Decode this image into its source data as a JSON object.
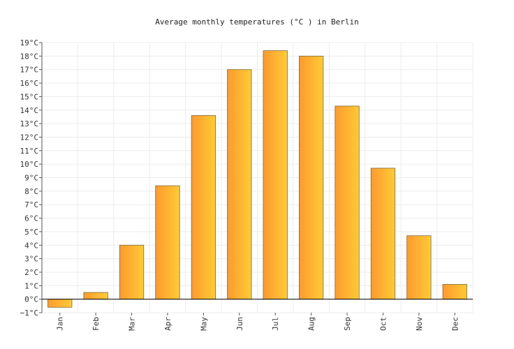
{
  "chart_data": {
    "type": "bar",
    "title": "Average monthly temperatures (°C ) in Berlin",
    "xlabel": "",
    "ylabel": "",
    "categories": [
      "Jan",
      "Feb",
      "Mar",
      "Apr",
      "May",
      "Jun",
      "Jul",
      "Aug",
      "Sep",
      "Oct",
      "Nov",
      "Dec"
    ],
    "values": [
      -0.6,
      0.5,
      4.0,
      8.4,
      13.6,
      17.0,
      18.4,
      18.0,
      14.3,
      9.7,
      4.7,
      1.1
    ],
    "ylim": [
      -1,
      19
    ],
    "y_ticks": [
      "−1°C",
      "0°C",
      "1°C",
      "2°C",
      "3°C",
      "4°C",
      "5°C",
      "6°C",
      "7°C",
      "8°C",
      "9°C",
      "10°C",
      "11°C",
      "12°C",
      "13°C",
      "14°C",
      "15°C",
      "16°C",
      "17°C",
      "18°C",
      "19°C"
    ],
    "grid": true,
    "bar_color_start": "#fd9a2f",
    "bar_color_end": "#ffcb35"
  }
}
